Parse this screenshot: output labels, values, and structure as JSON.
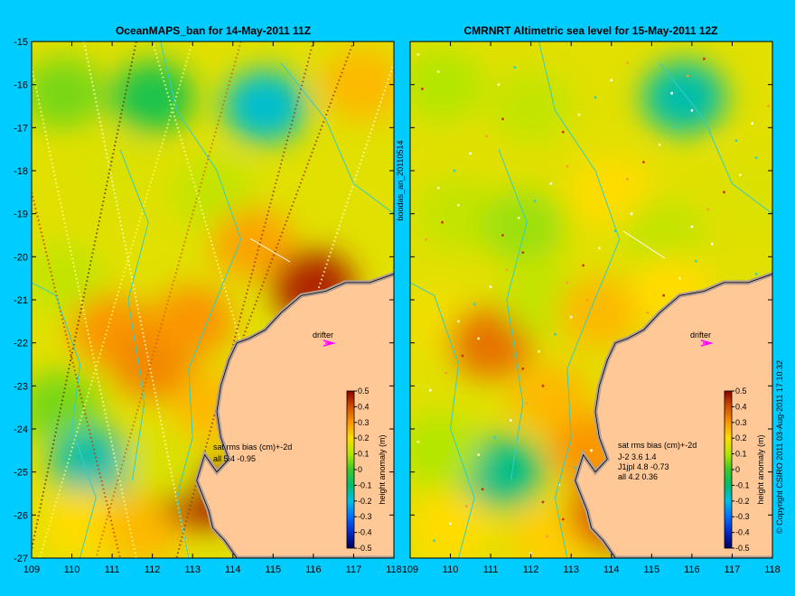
{
  "figure": {
    "side_label": "boodas_an_20110514",
    "copyright": "© Copyright CSIRO 2011  03-Aug-2011 17:10:32",
    "background_color": "#00ccff",
    "land_color": "#ffc896",
    "coast_color": "#b4a096",
    "contour_color": "#33cccc"
  },
  "chart_data": [
    {
      "type": "heatmap",
      "title": "OceanMAPS_ban for 14-May-2011 11Z",
      "x_ticks": [
        "109",
        "110",
        "111",
        "112",
        "113",
        "114",
        "115",
        "116",
        "117",
        "118"
      ],
      "y_ticks": [
        "-15",
        "-16",
        "-17",
        "-18",
        "-19",
        "-20",
        "-21",
        "-22",
        "-23",
        "-24",
        "-25",
        "-26",
        "-27"
      ],
      "xlim": [
        109,
        118
      ],
      "ylim": [
        -27,
        -15
      ],
      "colorbar": {
        "label": "height anomaly (m)",
        "ticks": [
          "0.5",
          "0.4",
          "0.3",
          "0.2",
          "0.1",
          "0",
          "-0.1",
          "-0.2",
          "-0.3",
          "-0.4",
          "-0.5"
        ],
        "range": [
          -0.5,
          0.5
        ]
      },
      "annotations": {
        "drifter_label": "drifter",
        "stats_header": "sat rms bias (cm)+-2d",
        "stats_rows": [
          "all 5.4 -0.95"
        ]
      },
      "anomaly_features": [
        {
          "lon": 109.8,
          "lat": -16.2,
          "value": 0.05
        },
        {
          "lon": 112.0,
          "lat": -16.3,
          "value": -0.05
        },
        {
          "lon": 114.8,
          "lat": -16.5,
          "value": -0.18
        },
        {
          "lon": 117.2,
          "lat": -16.0,
          "value": 0.25
        },
        {
          "lon": 111.0,
          "lat": -18.0,
          "value": 0.15
        },
        {
          "lon": 113.5,
          "lat": -18.5,
          "value": 0.12
        },
        {
          "lon": 109.8,
          "lat": -20.5,
          "value": 0.12
        },
        {
          "lon": 111.0,
          "lat": -21.7,
          "value": 0.3
        },
        {
          "lon": 112.0,
          "lat": -22.5,
          "value": 0.32
        },
        {
          "lon": 113.0,
          "lat": -21.5,
          "value": 0.3
        },
        {
          "lon": 114.5,
          "lat": -19.7,
          "value": 0.28
        },
        {
          "lon": 116.0,
          "lat": -20.7,
          "value": 0.45
        },
        {
          "lon": 113.5,
          "lat": -23.5,
          "value": 0.25
        },
        {
          "lon": 109.7,
          "lat": -23.5,
          "value": 0.05
        },
        {
          "lon": 110.5,
          "lat": -24.8,
          "value": -0.15
        },
        {
          "lon": 110.3,
          "lat": -26.2,
          "value": 0.2
        },
        {
          "lon": 111.8,
          "lat": -26.3,
          "value": 0.25
        },
        {
          "lon": 113.2,
          "lat": -25.5,
          "value": 0.45
        },
        {
          "lon": 112.3,
          "lat": -24.8,
          "value": 0.15
        }
      ]
    },
    {
      "type": "heatmap",
      "title": "CMRNRT Altimetric sea level  for 15-May-2011 12Z",
      "x_ticks": [
        "109",
        "110",
        "111",
        "112",
        "113",
        "114",
        "115",
        "116",
        "117",
        "118"
      ],
      "y_ticks": [],
      "xlim": [
        109,
        118
      ],
      "ylim": [
        -27,
        -15
      ],
      "colorbar": {
        "label": "height anomaly (m)",
        "ticks": [
          "0.5",
          "0.4",
          "0.3",
          "0.2",
          "0.1",
          "0",
          "-0.1",
          "-0.2",
          "-0.3",
          "-0.4",
          "-0.5"
        ],
        "range": [
          -0.5,
          0.5
        ]
      },
      "annotations": {
        "drifter_label": "drifter",
        "stats_header": "sat rms bias (cm)+-2d",
        "stats_rows": [
          "J-2   3.6 1.4",
          "J1jpl 4.8 -0.73",
          "all 4.2 0.36"
        ]
      },
      "anomaly_features": [
        {
          "lon": 109.8,
          "lat": -16.0,
          "value": 0.1
        },
        {
          "lon": 112.0,
          "lat": -16.5,
          "value": 0.12
        },
        {
          "lon": 115.8,
          "lat": -16.3,
          "value": -0.15
        },
        {
          "lon": 117.5,
          "lat": -18.5,
          "value": 0.15
        },
        {
          "lon": 110.2,
          "lat": -19.0,
          "value": 0.12
        },
        {
          "lon": 111.8,
          "lat": -19.3,
          "value": 0.08
        },
        {
          "lon": 114.0,
          "lat": -18.5,
          "value": 0.2
        },
        {
          "lon": 115.3,
          "lat": -19.5,
          "value": 0.12
        },
        {
          "lon": 109.7,
          "lat": -21.5,
          "value": 0.18
        },
        {
          "lon": 111.0,
          "lat": -22.0,
          "value": 0.35
        },
        {
          "lon": 112.3,
          "lat": -21.0,
          "value": 0.12
        },
        {
          "lon": 113.7,
          "lat": -21.3,
          "value": 0.25
        },
        {
          "lon": 115.5,
          "lat": -20.8,
          "value": 0.2
        },
        {
          "lon": 112.5,
          "lat": -23.3,
          "value": 0.25
        },
        {
          "lon": 111.3,
          "lat": -25.0,
          "value": -0.12
        },
        {
          "lon": 109.7,
          "lat": -24.5,
          "value": 0.1
        },
        {
          "lon": 113.5,
          "lat": -24.5,
          "value": 0.3
        },
        {
          "lon": 110.0,
          "lat": -26.3,
          "value": 0.2
        },
        {
          "lon": 112.5,
          "lat": -26.5,
          "value": 0.22
        },
        {
          "lon": 114.0,
          "lat": -26.0,
          "value": 0.38
        }
      ]
    }
  ]
}
